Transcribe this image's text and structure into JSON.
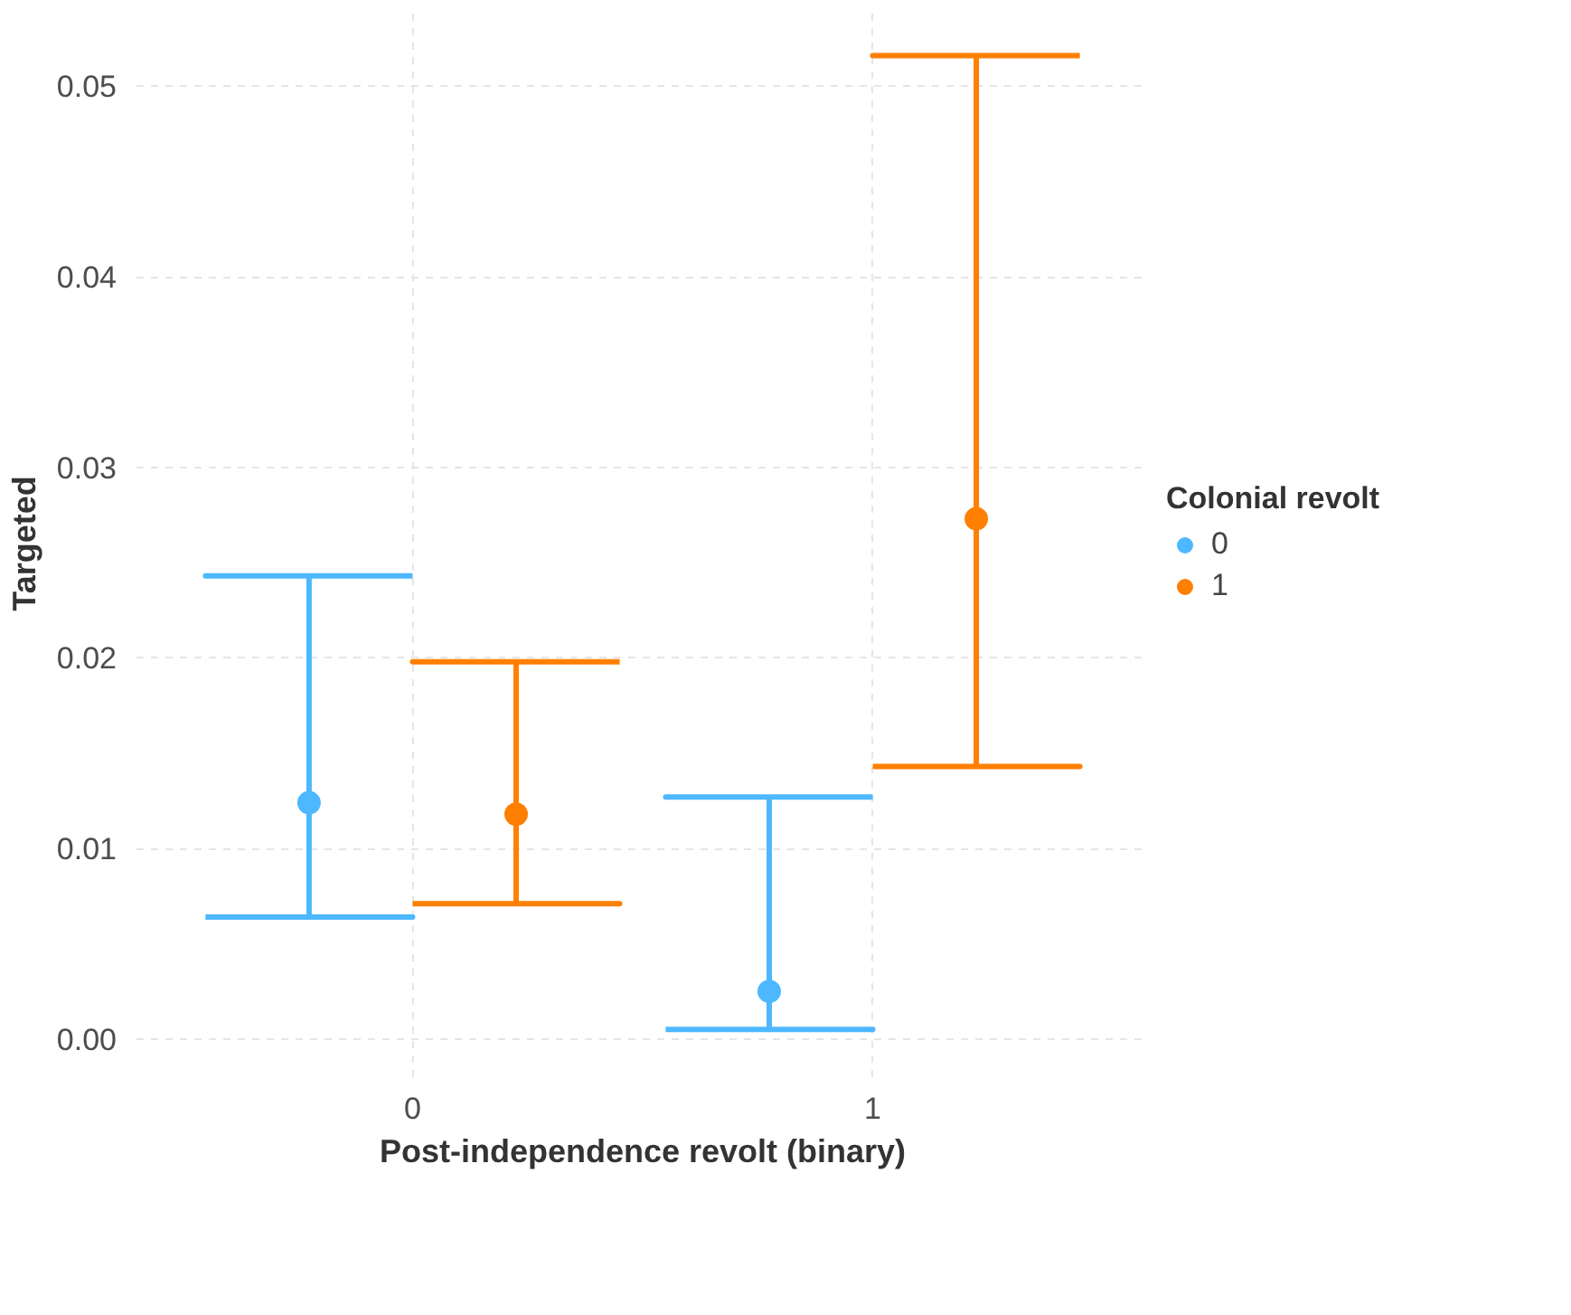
{
  "chart_data": {
    "type": "scatter",
    "xlabel": "Post-independence revolt (binary)",
    "ylabel": "Targeted",
    "legend_title": "Colonial revolt",
    "categories": [
      "0",
      "1"
    ],
    "series": [
      {
        "name": "0",
        "color": "#4db8ff",
        "values": [
          0.0124,
          0.0025
        ],
        "errors": [
          [
            0.0064,
            0.0243
          ],
          [
            0.0005,
            0.0127
          ]
        ]
      },
      {
        "name": "1",
        "color": "#ff7f00",
        "values": [
          0.0118,
          0.0273
        ],
        "errors": [
          [
            0.0071,
            0.0198
          ],
          [
            0.0143,
            0.0516
          ]
        ]
      }
    ],
    "ylim": [
      -0.002,
      0.054
    ],
    "yticks": [
      {
        "value": 0,
        "label": "0.00"
      },
      {
        "value": 0.01,
        "label": "0.01"
      },
      {
        "value": 0.02,
        "label": "0.02"
      },
      {
        "value": 0.03,
        "label": "0.03"
      },
      {
        "value": 0.04,
        "label": "0.04"
      },
      {
        "value": 0.05,
        "label": "0.05"
      }
    ],
    "grid": true,
    "legend": "right",
    "marker": "circle"
  }
}
